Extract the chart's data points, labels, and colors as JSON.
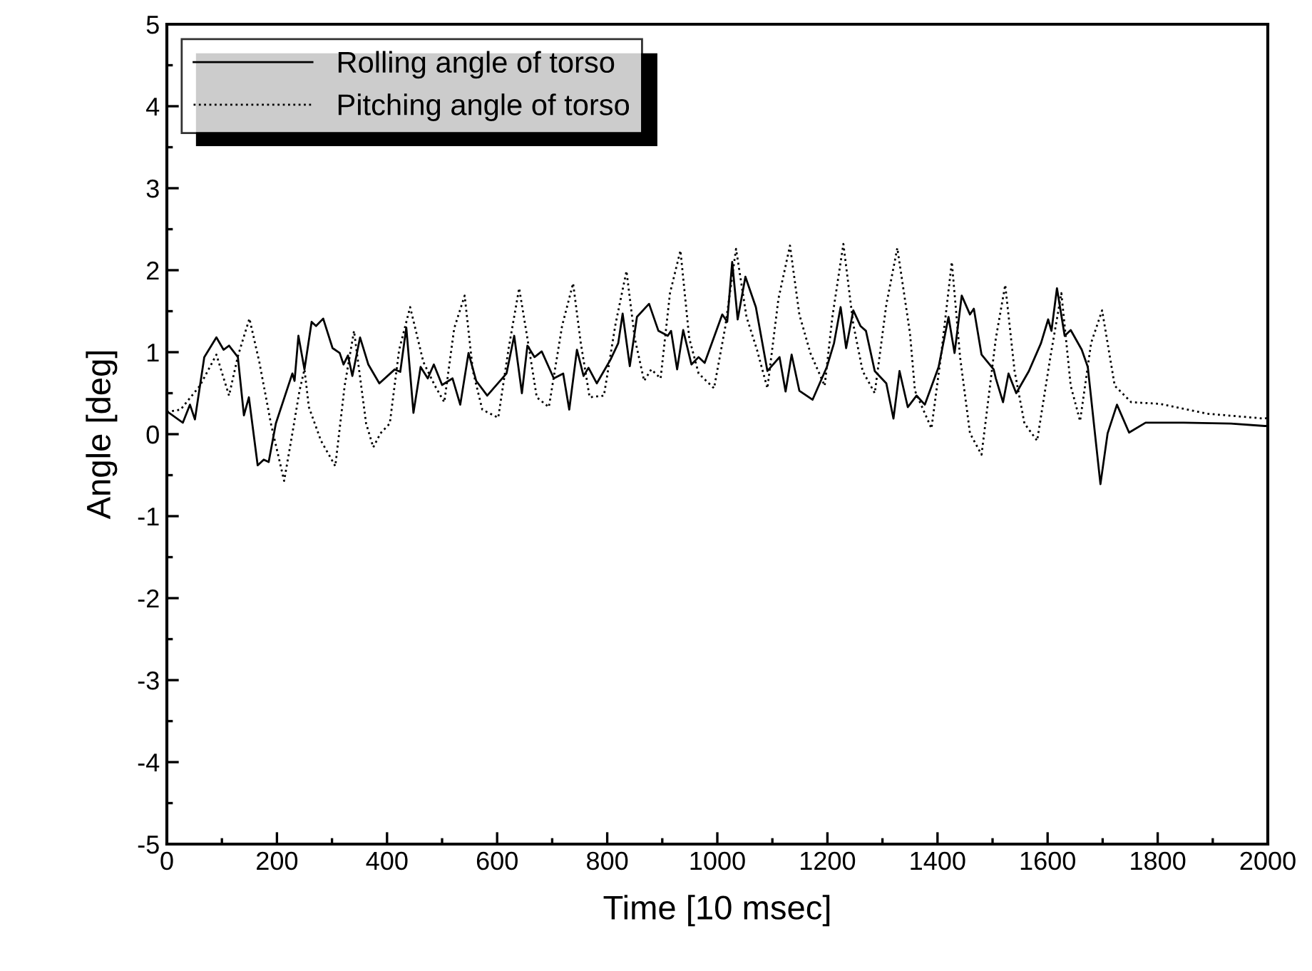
{
  "chart_data": {
    "type": "line",
    "xlabel": "Time [10 msec]",
    "ylabel": "Angle [deg]",
    "xlim": [
      0,
      2000
    ],
    "xticks": [
      0,
      200,
      400,
      600,
      800,
      1000,
      1200,
      1400,
      1600,
      1800,
      2000
    ],
    "ylim": [
      -5,
      5
    ],
    "yticks": [
      -5,
      -4,
      -3,
      -2,
      -1,
      0,
      1,
      2,
      3,
      4,
      5
    ],
    "grid": false,
    "legend": "top left",
    "marker": "none",
    "series": [
      {
        "name": "Rolling angle of torso",
        "color": "#000000",
        "line_style": "solid",
        "x": [
          0,
          29,
          42,
          51,
          68,
          90,
          103,
          113,
          129,
          140,
          149,
          165,
          176,
          185,
          198,
          228,
          232,
          239,
          250,
          263,
          271,
          284,
          301,
          314,
          321,
          329,
          337,
          351,
          366,
          386,
          414,
          424,
          435,
          448,
          461,
          474,
          485,
          500,
          519,
          533,
          548,
          562,
          582,
          617,
          631,
          645,
          655,
          668,
          681,
          703,
          720,
          731,
          745,
          757,
          766,
          781,
          806,
          820,
          828,
          841,
          854,
          876,
          893,
          910,
          916,
          927,
          938,
          953,
          966,
          977,
          1009,
          1018,
          1027,
          1037,
          1051,
          1070,
          1091,
          1113,
          1124,
          1135,
          1149,
          1173,
          1199,
          1212,
          1224,
          1234,
          1247,
          1260,
          1270,
          1286,
          1307,
          1320,
          1331,
          1346,
          1362,
          1377,
          1402,
          1420,
          1431,
          1444,
          1459,
          1466,
          1480,
          1502,
          1506,
          1519,
          1529,
          1543,
          1566,
          1588,
          1601,
          1607,
          1617,
          1631,
          1642,
          1662,
          1673,
          1685,
          1696,
          1709,
          1726,
          1748,
          1778,
          1847,
          1933,
          1994,
          2000
        ],
        "values": [
          0.28,
          0.14,
          0.36,
          0.18,
          0.94,
          1.18,
          1.03,
          1.08,
          0.94,
          0.23,
          0.45,
          -0.38,
          -0.31,
          -0.34,
          0.13,
          0.74,
          0.65,
          1.2,
          0.79,
          1.37,
          1.32,
          1.41,
          1.05,
          0.99,
          0.85,
          0.96,
          0.71,
          1.18,
          0.85,
          0.62,
          0.79,
          0.76,
          1.3,
          0.26,
          0.82,
          0.68,
          0.85,
          0.6,
          0.68,
          0.36,
          0.99,
          0.65,
          0.47,
          0.74,
          1.2,
          0.5,
          1.08,
          0.94,
          1.01,
          0.68,
          0.74,
          0.3,
          1.03,
          0.71,
          0.81,
          0.62,
          0.91,
          1.11,
          1.47,
          0.83,
          1.43,
          1.59,
          1.26,
          1.2,
          1.26,
          0.79,
          1.27,
          0.85,
          0.94,
          0.87,
          1.46,
          1.37,
          2.1,
          1.4,
          1.92,
          1.55,
          0.77,
          0.94,
          0.52,
          0.97,
          0.53,
          0.42,
          0.82,
          1.11,
          1.55,
          1.05,
          1.51,
          1.32,
          1.26,
          0.77,
          0.62,
          0.19,
          0.77,
          0.33,
          0.47,
          0.36,
          0.82,
          1.43,
          0.99,
          1.69,
          1.46,
          1.53,
          0.97,
          0.79,
          0.68,
          0.39,
          0.74,
          0.5,
          0.77,
          1.11,
          1.4,
          1.26,
          1.78,
          1.2,
          1.27,
          1.03,
          0.82,
          0.07,
          -0.61,
          0.01,
          0.36,
          0.02,
          0.14,
          0.14,
          0.13,
          0.1,
          0.1
        ]
      },
      {
        "name": "Pitching angle of torso",
        "color": "#000000",
        "line_style": "dotted",
        "x": [
          0,
          25,
          60,
          90,
          113,
          129,
          150,
          168,
          189,
          213,
          228,
          241,
          250,
          258,
          280,
          306,
          323,
          340,
          362,
          375,
          388,
          405,
          422,
          442,
          466,
          487,
          504,
          522,
          541,
          556,
          573,
          602,
          621,
          640,
          655,
          672,
          694,
          718,
          738,
          752,
          768,
          794,
          815,
          835,
          850,
          867,
          880,
          897,
          914,
          933,
          949,
          966,
          994,
          1014,
          1034,
          1053,
          1072,
          1091,
          1111,
          1132,
          1149,
          1169,
          1195,
          1209,
          1229,
          1247,
          1264,
          1286,
          1307,
          1327,
          1350,
          1359,
          1389,
          1407,
          1426,
          1441,
          1459,
          1480,
          1506,
          1523,
          1540,
          1558,
          1581,
          1605,
          1625,
          1642,
          1659,
          1679,
          1699,
          1722,
          1752,
          1804,
          1890,
          1994,
          2000
        ],
        "values": [
          0.27,
          0.3,
          0.59,
          0.97,
          0.47,
          0.95,
          1.41,
          0.88,
          0.13,
          -0.57,
          0.01,
          0.53,
          0.79,
          0.33,
          -0.08,
          -0.39,
          0.59,
          1.26,
          0.13,
          -0.16,
          0.01,
          0.13,
          1.03,
          1.55,
          0.88,
          0.59,
          0.39,
          1.29,
          1.69,
          0.77,
          0.3,
          0.2,
          1.05,
          1.78,
          1.17,
          0.45,
          0.33,
          1.32,
          1.84,
          1.11,
          0.45,
          0.47,
          1.34,
          1.99,
          1.17,
          0.65,
          0.79,
          0.68,
          1.72,
          2.24,
          1.17,
          0.74,
          0.56,
          1.29,
          2.26,
          1.43,
          1.03,
          0.56,
          1.65,
          2.3,
          1.46,
          0.99,
          0.59,
          1.43,
          2.32,
          1.34,
          0.77,
          0.5,
          1.58,
          2.27,
          1.23,
          0.53,
          0.07,
          0.99,
          2.1,
          0.94,
          0.01,
          -0.25,
          1.17,
          1.82,
          0.77,
          0.13,
          -0.08,
          0.94,
          1.72,
          0.59,
          0.16,
          1.11,
          1.51,
          0.59,
          0.39,
          0.37,
          0.25,
          0.19,
          0.2
        ]
      }
    ]
  }
}
